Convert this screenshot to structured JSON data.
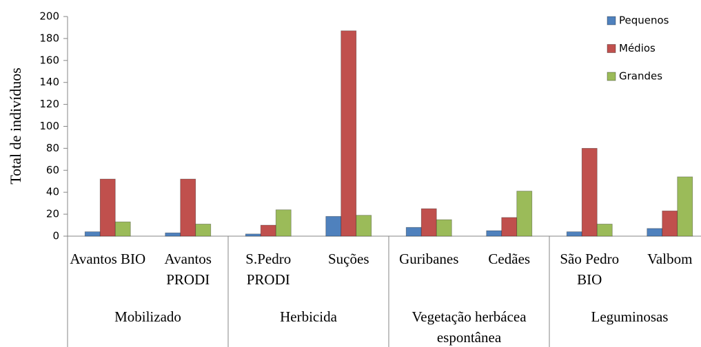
{
  "chart_data": {
    "type": "bar",
    "y_label": "Total de indivíduos",
    "groups": [
      {
        "name": "Mobilizado",
        "categories": [
          "Avantos BIO",
          "Avantos PRODI"
        ]
      },
      {
        "name": "Herbicida",
        "categories": [
          "S.Pedro PRODI",
          "Suções"
        ]
      },
      {
        "name": "Vegetação herbácea espontânea",
        "categories": [
          "Guribanes",
          "Cedães"
        ]
      },
      {
        "name": "Leguminosas",
        "categories": [
          "São Pedro BIO",
          "Valbom"
        ]
      }
    ],
    "series": [
      {
        "name": "Pequenos",
        "color": "#4f81bd",
        "values": [
          4,
          3,
          2,
          18,
          8,
          5,
          4,
          7
        ]
      },
      {
        "name": "Médios",
        "color": "#c0504d",
        "values": [
          52,
          52,
          10,
          187,
          25,
          17,
          80,
          23
        ]
      },
      {
        "name": "Grandes",
        "color": "#9bbb59",
        "values": [
          13,
          11,
          24,
          19,
          15,
          41,
          11,
          54
        ]
      }
    ],
    "ylim": [
      0,
      200
    ],
    "yticks": [
      0,
      20,
      40,
      60,
      80,
      100,
      120,
      140,
      160,
      180,
      200
    ],
    "legend": "top-right"
  }
}
